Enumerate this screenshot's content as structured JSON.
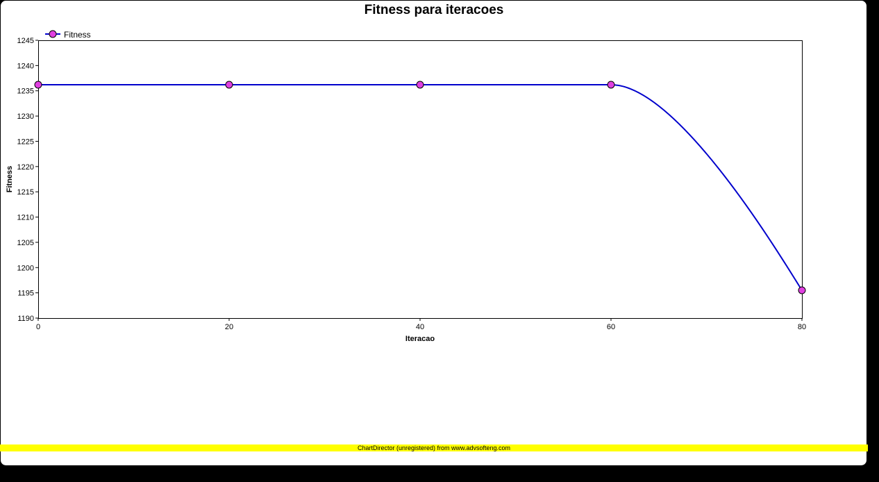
{
  "chart_data": {
    "type": "line",
    "title": "Fitness para iteracoes",
    "xlabel": "Iteracao",
    "ylabel": "Fitness",
    "xlim": [
      0,
      80
    ],
    "ylim": [
      1190,
      1245
    ],
    "x_ticks": [
      0,
      20,
      40,
      60,
      80
    ],
    "y_ticks": [
      1190,
      1195,
      1200,
      1205,
      1210,
      1215,
      1220,
      1225,
      1230,
      1235,
      1240,
      1245
    ],
    "grid": false,
    "legend": {
      "position": "top-left"
    },
    "series": [
      {
        "name": "Fitness",
        "x": [
          0,
          20,
          40,
          60,
          80
        ],
        "values": [
          1236.2,
          1236.2,
          1236.2,
          1236.2,
          1195.5
        ],
        "line_color": "#0000CC",
        "marker_color": "#E040E0"
      }
    ]
  },
  "footer": {
    "text": "ChartDirector (unregistered) from www.advsofteng.com",
    "background": "#FFFF00"
  },
  "colors": {
    "background": "#FFFFFF",
    "frame": "#000000"
  }
}
